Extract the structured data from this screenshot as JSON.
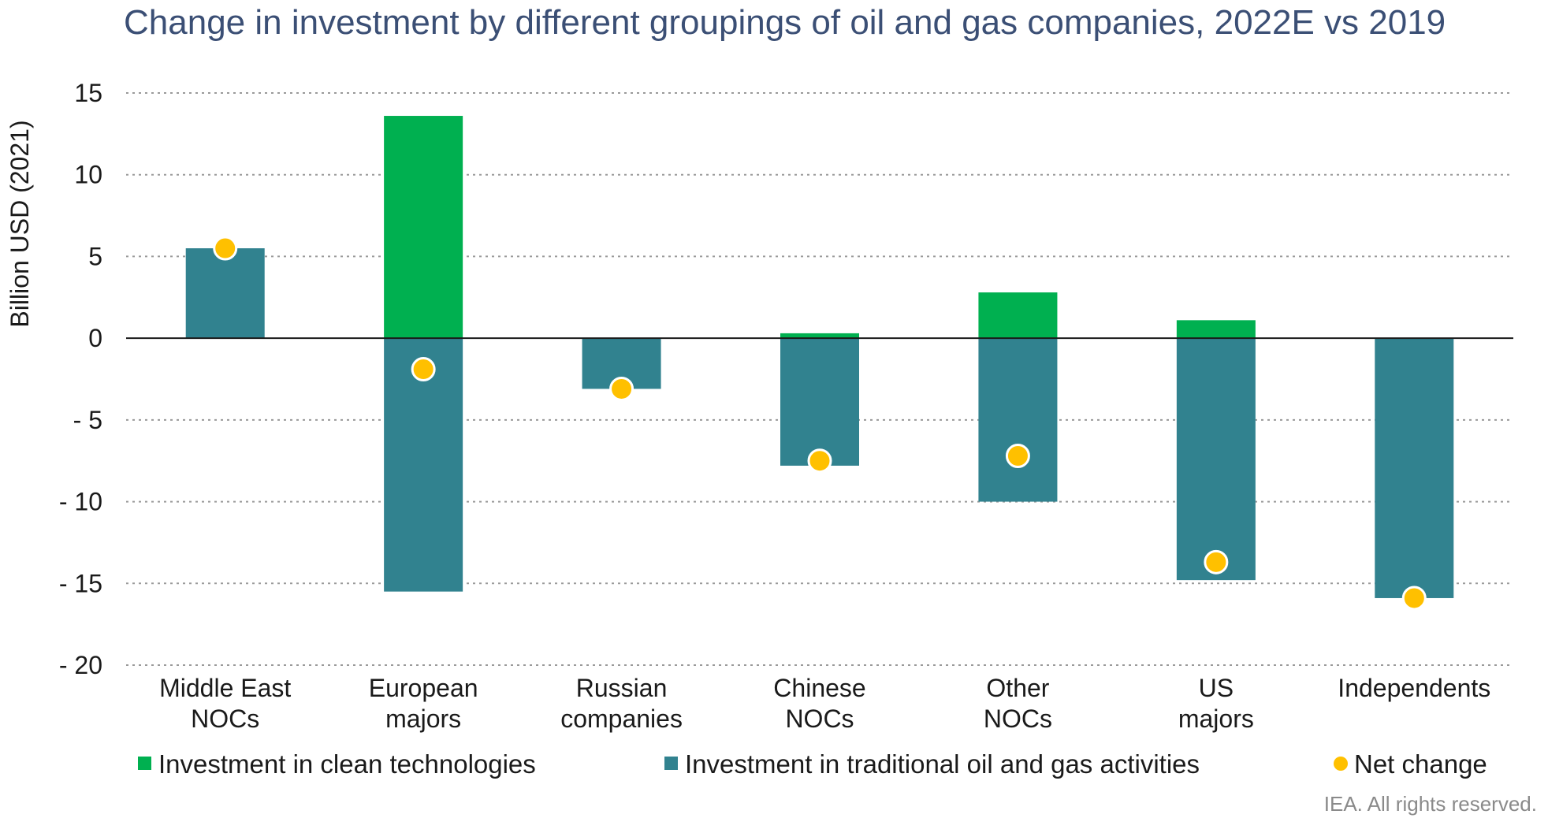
{
  "chart_data": {
    "type": "bar",
    "title": "Change in investment by different groupings of oil and gas companies, 2022E vs 2019",
    "ylabel": "Billion USD (2021)",
    "ylim": [
      -20,
      15
    ],
    "yticks": [
      15,
      10,
      5,
      0,
      -5,
      -10,
      -15,
      -20
    ],
    "ytick_labels": [
      "15",
      "10",
      "5",
      "0",
      "- 5",
      "- 10",
      "- 15",
      "- 20"
    ],
    "grid": true,
    "stacked": true,
    "categories": [
      [
        "Middle East",
        "NOCs"
      ],
      [
        "European",
        "majors"
      ],
      [
        "Russian",
        "companies"
      ],
      [
        "Chinese",
        "NOCs"
      ],
      [
        "Other",
        "NOCs"
      ],
      [
        "US",
        "majors"
      ],
      [
        "Independents"
      ]
    ],
    "series": [
      {
        "name": "Investment in clean technologies",
        "kind": "bar",
        "color": "#00b050",
        "values": [
          0,
          13.6,
          0,
          0.3,
          2.8,
          1.1,
          0
        ]
      },
      {
        "name": "Investment in traditional oil and gas activities",
        "kind": "bar",
        "color": "#31828f",
        "values": [
          5.5,
          -15.5,
          -3.1,
          -7.8,
          -10.0,
          -14.8,
          -15.9
        ]
      },
      {
        "name": "Net change",
        "kind": "marker",
        "color": "#ffc000",
        "values": [
          5.5,
          -1.9,
          -3.1,
          -7.5,
          -7.2,
          -13.7,
          -15.9
        ]
      }
    ],
    "legend_position": "bottom",
    "credit": "IEA. All rights reserved."
  }
}
